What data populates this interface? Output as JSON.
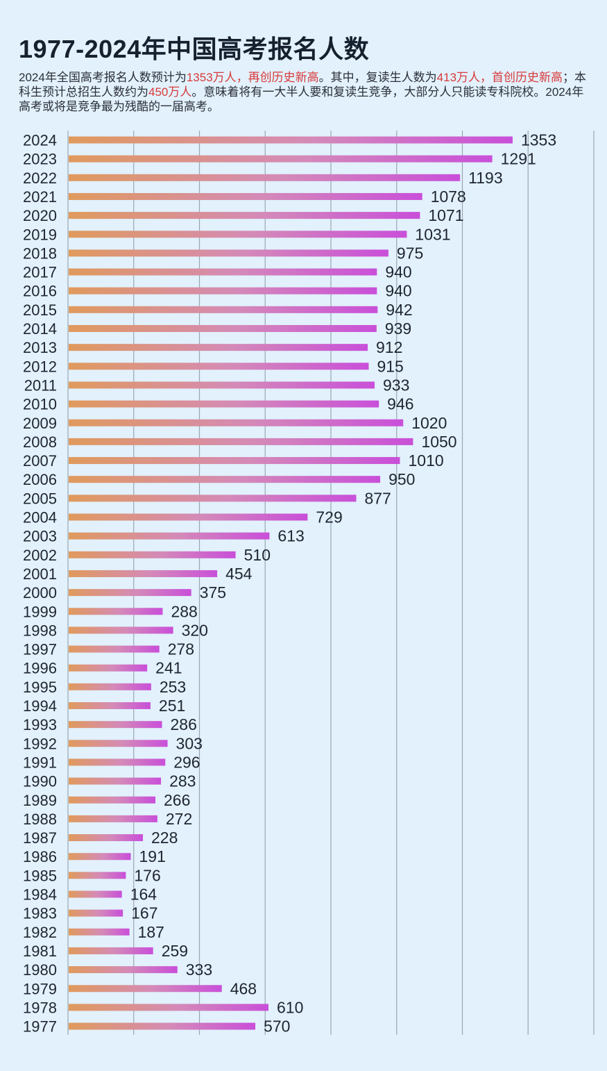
{
  "title": "1977-2024年中国高考报名人数",
  "subtitle": {
    "p1": "2024年全国高考报名人数预计为",
    "h1": "1353万人，再创历史新高",
    "p2": "。其中，复读生人数为",
    "h2": "413万人，首创历史新高",
    "p3": "；本科生预计总招生人数约为",
    "h3": "450万人",
    "p4": "。意味着将有一大半人要和复读生竞争，大部分人只能读专科院校。2024年高考或将是竞争最为残酷的一届高考。"
  },
  "colors": {
    "bar_start": "#e09a5c",
    "bar_mid": "#d48ab8",
    "bar_end": "#c94fd9",
    "highlight": "#d83a3a",
    "background": "#e2f1fc",
    "grid": "#9aa6b2"
  },
  "chart_data": {
    "type": "bar",
    "orientation": "horizontal",
    "unit": "万人",
    "xlim": [
      0,
      1600
    ],
    "grid": true,
    "categories": [
      "2024",
      "2023",
      "2022",
      "2021",
      "2020",
      "2019",
      "2018",
      "2017",
      "2016",
      "2015",
      "2014",
      "2013",
      "2012",
      "2011",
      "2010",
      "2009",
      "2008",
      "2007",
      "2006",
      "2005",
      "2004",
      "2003",
      "2002",
      "2001",
      "2000",
      "1999",
      "1998",
      "1997",
      "1996",
      "1995",
      "1994",
      "1993",
      "1992",
      "1991",
      "1990",
      "1989",
      "1988",
      "1987",
      "1986",
      "1985",
      "1984",
      "1983",
      "1982",
      "1981",
      "1980",
      "1979",
      "1978",
      "1977"
    ],
    "values": [
      1353,
      1291,
      1193,
      1078,
      1071,
      1031,
      975,
      940,
      940,
      942,
      939,
      912,
      915,
      933,
      946,
      1020,
      1050,
      1010,
      950,
      877,
      729,
      613,
      510,
      454,
      375,
      288,
      320,
      278,
      241,
      253,
      251,
      286,
      303,
      296,
      283,
      266,
      272,
      228,
      191,
      176,
      164,
      167,
      187,
      259,
      333,
      468,
      610,
      570
    ]
  }
}
